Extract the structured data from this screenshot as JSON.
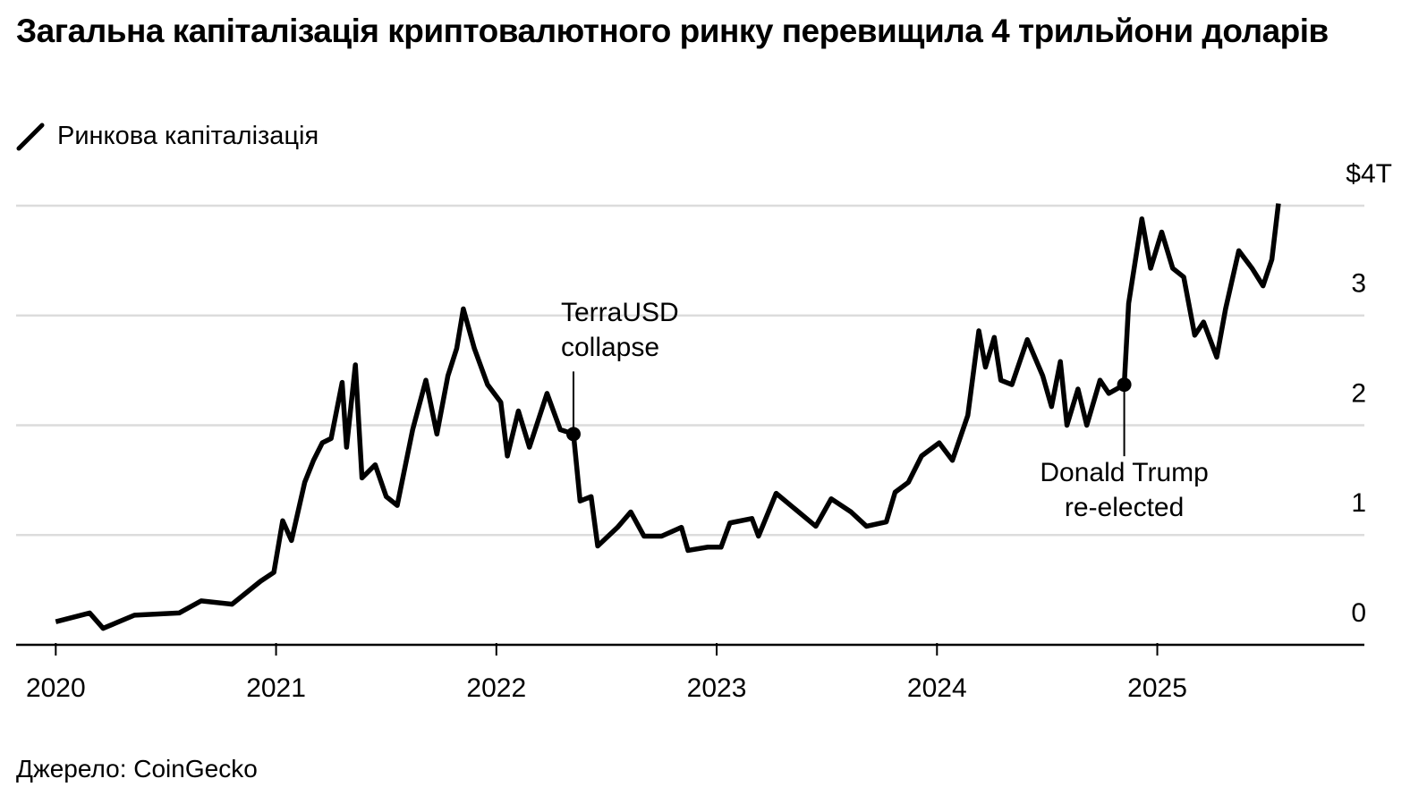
{
  "chart_data": {
    "type": "line",
    "title": "Загальна капіталізація криптовалютного ринку перевищила 4 трильйони доларів",
    "source": "Джерело: CoinGecko",
    "xlim": [
      2019.82,
      2025.94
    ],
    "xticks": [
      2020,
      2021,
      2022,
      2023,
      2024,
      2025
    ],
    "ylim": [
      0,
      4
    ],
    "yticks": [
      0,
      1,
      2,
      3,
      {
        "value": 4,
        "label": "$4T"
      }
    ],
    "grid": true,
    "x": [
      2020.0,
      2020.154,
      2020.215,
      2020.357,
      2020.56,
      2020.66,
      2020.8,
      2020.93,
      2020.99,
      2021.03,
      2021.07,
      2021.13,
      2021.17,
      2021.21,
      2021.25,
      2021.3,
      2021.32,
      2021.36,
      2021.39,
      2021.45,
      2021.5,
      2021.55,
      2021.62,
      2021.68,
      2021.73,
      2021.78,
      2021.82,
      2021.85,
      2021.9,
      2021.96,
      2022.02,
      2022.05,
      2022.1,
      2022.15,
      2022.23,
      2022.29,
      2022.35,
      2022.38,
      2022.43,
      2022.46,
      2022.55,
      2022.61,
      2022.67,
      2022.75,
      2022.84,
      2022.87,
      2022.96,
      2023.02,
      2023.06,
      2023.16,
      2023.19,
      2023.27,
      2023.36,
      2023.45,
      2023.52,
      2023.61,
      2023.68,
      2023.77,
      2023.81,
      2023.87,
      2023.93,
      2024.01,
      2024.07,
      2024.14,
      2024.19,
      2024.22,
      2024.26,
      2024.29,
      2024.34,
      2024.41,
      2024.48,
      2024.52,
      2024.56,
      2024.59,
      2024.64,
      2024.68,
      2024.74,
      2024.78,
      2024.85,
      2024.87,
      2024.93,
      2024.97,
      2025.02,
      2025.07,
      2025.12,
      2025.17,
      2025.21,
      2025.27,
      2025.31,
      2025.37,
      2025.43,
      2025.48,
      2025.52,
      2025.55
    ],
    "series": [
      {
        "name": "Ринкова капіталізація",
        "color": "#000000",
        "values": [
          0.21,
          0.29,
          0.15,
          0.27,
          0.29,
          0.4,
          0.37,
          0.58,
          0.66,
          1.13,
          0.95,
          1.48,
          1.68,
          1.84,
          1.88,
          2.39,
          1.8,
          2.55,
          1.52,
          1.64,
          1.35,
          1.27,
          1.96,
          2.41,
          1.92,
          2.45,
          2.7,
          3.06,
          2.7,
          2.37,
          2.21,
          1.72,
          2.13,
          1.8,
          2.29,
          1.96,
          1.92,
          1.31,
          1.35,
          0.9,
          1.07,
          1.21,
          0.99,
          0.99,
          1.07,
          0.86,
          0.89,
          0.89,
          1.11,
          1.15,
          0.99,
          1.38,
          1.23,
          1.08,
          1.33,
          1.21,
          1.08,
          1.12,
          1.39,
          1.48,
          1.72,
          1.84,
          1.68,
          2.09,
          2.86,
          2.53,
          2.8,
          2.41,
          2.37,
          2.78,
          2.45,
          2.17,
          2.58,
          2.0,
          2.33,
          2.0,
          2.41,
          2.29,
          2.37,
          3.11,
          3.88,
          3.43,
          3.76,
          3.43,
          3.35,
          2.82,
          2.94,
          2.62,
          3.06,
          3.59,
          3.43,
          3.27,
          3.51,
          4.02
        ]
      }
    ],
    "annotations": [
      {
        "text": [
          "TerraUSD",
          "collapse"
        ],
        "x": 2022.35,
        "y": 1.92
      },
      {
        "text": [
          "Donald Trump",
          "re-elected"
        ],
        "x": 2024.85,
        "y": 2.37
      }
    ]
  }
}
